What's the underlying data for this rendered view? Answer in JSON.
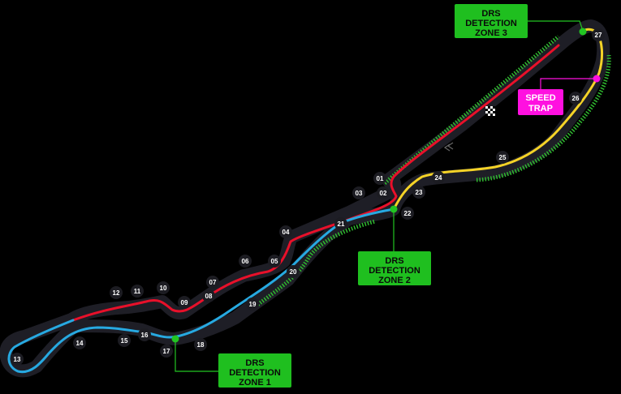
{
  "map": {
    "colors": {
      "background": "#000000",
      "track_outline": "#1e1e26",
      "sector_1": "#e8102a",
      "sector_2": "#27a9e1",
      "sector_3": "#f5d327",
      "drs_zone": "#2fb82f",
      "drs_label_bg": "#1fbf1f",
      "speed_trap": "#ff10e0",
      "connector": "#22c522"
    },
    "turns": [
      "01",
      "02",
      "03",
      "04",
      "05",
      "06",
      "07",
      "08",
      "09",
      "10",
      "11",
      "12",
      "13",
      "14",
      "15",
      "16",
      "17",
      "18",
      "19",
      "20",
      "21",
      "22",
      "23",
      "24",
      "25",
      "26",
      "27"
    ],
    "drs_detection_1": "DRS DETECTION ZONE 1",
    "drs_detection_2": "DRS DETECTION ZONE 2",
    "drs_detection_3": "DRS DETECTION ZONE 3",
    "speed_trap": "SPEED TRAP",
    "icons": [
      "chequered-flag-icon",
      "direction-chevron-icon"
    ]
  }
}
